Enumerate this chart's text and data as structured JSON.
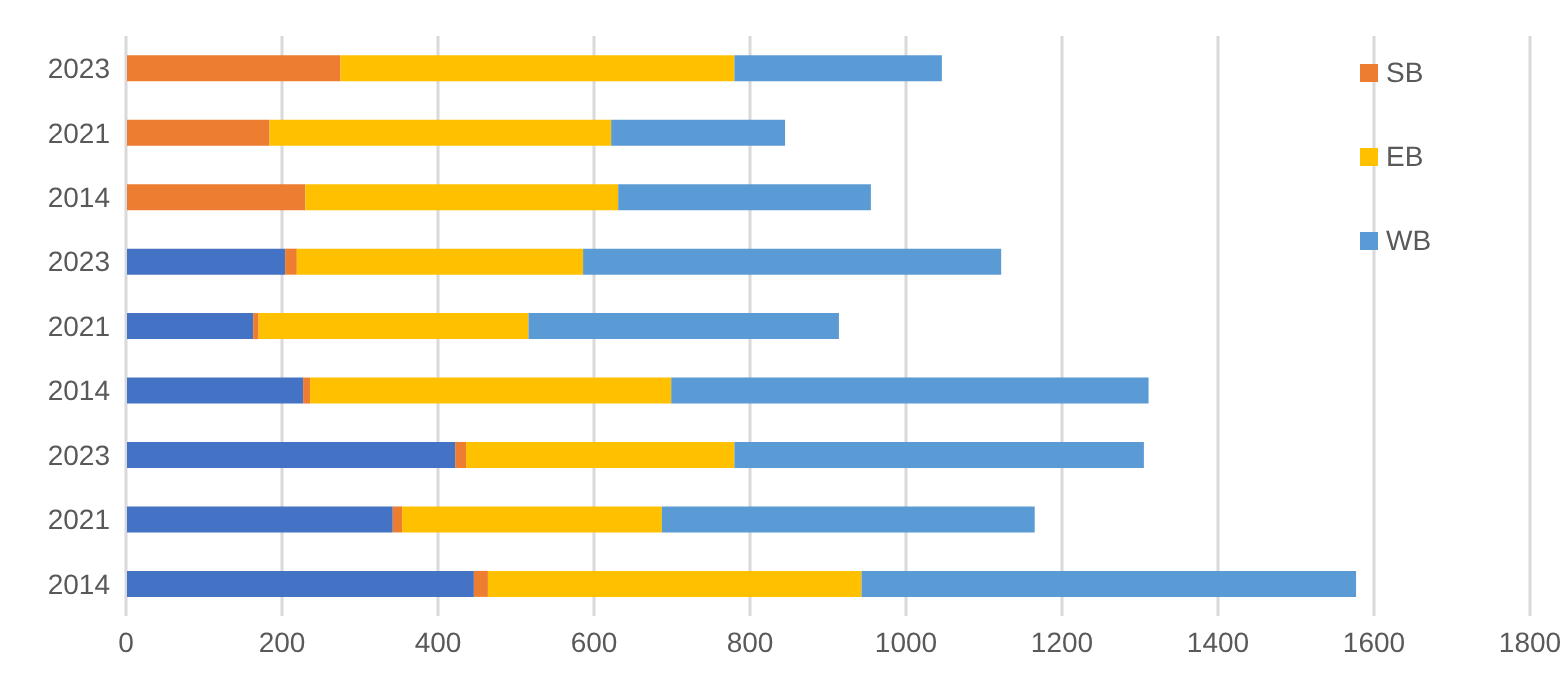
{
  "chart_data": {
    "type": "bar",
    "orientation": "horizontal",
    "stacked": true,
    "categories": [
      "2023",
      "2021",
      "2014",
      "2023",
      "2021",
      "2014",
      "2023",
      "2021",
      "2014"
    ],
    "series": [
      {
        "color": "#4472c4",
        "values": [
          null,
          null,
          null,
          204,
          163,
          227,
          422,
          342,
          446
        ]
      },
      {
        "name": "SB",
        "color": "#ed7d31",
        "values": [
          275,
          184,
          230,
          15,
          7,
          9,
          14,
          12,
          18
        ]
      },
      {
        "name": "EB",
        "color": "#ffc000",
        "values": [
          505,
          438,
          401,
          367,
          346,
          463,
          344,
          333,
          479
        ]
      },
      {
        "name": "WB",
        "color": "#5b9bd5",
        "values": [
          266,
          223,
          324,
          536,
          398,
          612,
          525,
          478,
          634
        ]
      }
    ],
    "xlim": [
      0,
      1800
    ],
    "xticks": [
      0,
      200,
      400,
      600,
      800,
      1000,
      1200,
      1400,
      1600,
      1800
    ],
    "grid": "x",
    "legend": "top right"
  }
}
